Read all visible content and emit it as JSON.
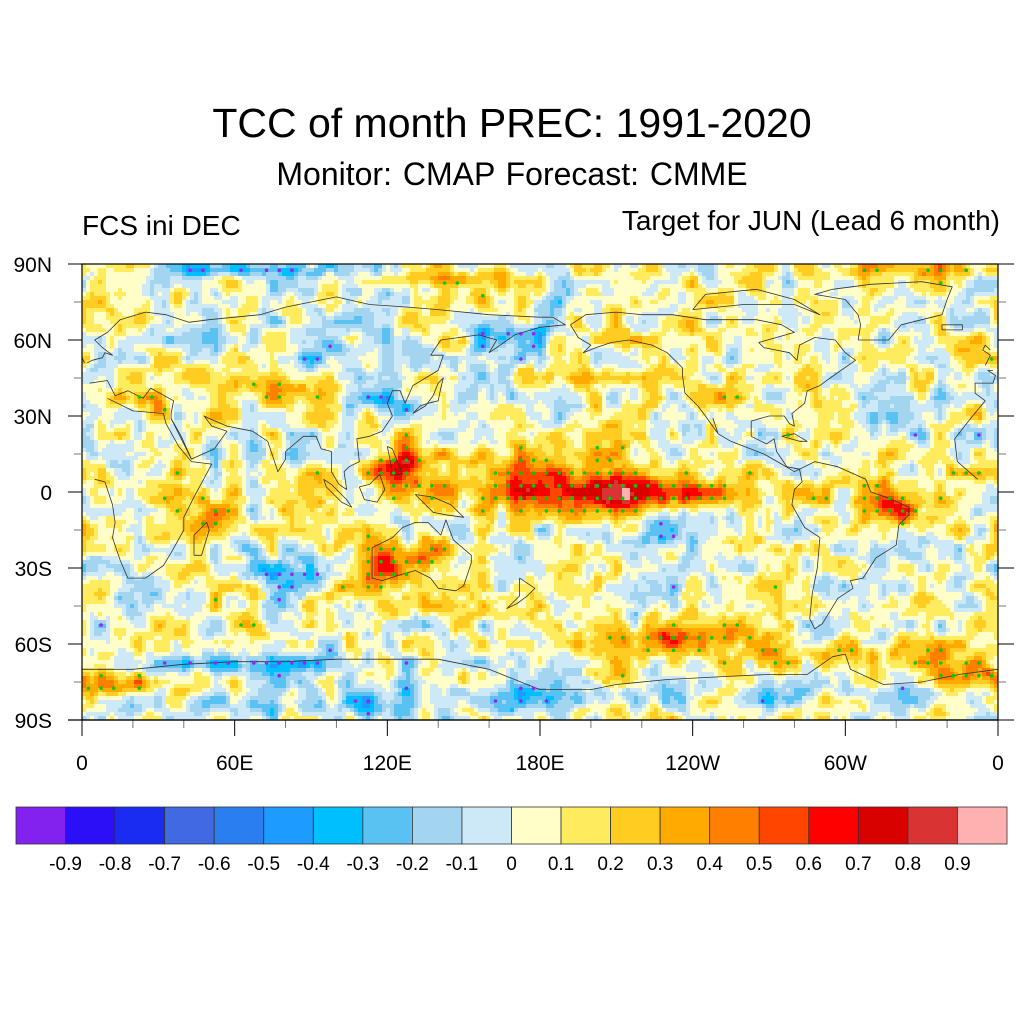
{
  "header": {
    "title": "TCC of month PREC: 1991-2020",
    "subtitle": "Monitor: CMAP   Forecast: CMME",
    "left_label": "FCS ini DEC",
    "right_label": "Target for JUN (Lead 6 month)"
  },
  "chart_data": {
    "type": "heatmap",
    "title": "TCC of month PREC: 1991-2020",
    "subtitle": "Monitor: CMAP   Forecast: CMME",
    "annotations": [
      "FCS ini DEC",
      "Target for JUN (Lead 6 month)"
    ],
    "projection": "cylindrical equidistant global map with coastlines",
    "xlabel": "",
    "ylabel": "",
    "x_range_deg_east": [
      0,
      360
    ],
    "y_range_deg_north": [
      -90,
      90
    ],
    "x_ticks": [
      {
        "lon": 0,
        "label": "0"
      },
      {
        "lon": 60,
        "label": "60E"
      },
      {
        "lon": 120,
        "label": "120E"
      },
      {
        "lon": 180,
        "label": "180E"
      },
      {
        "lon": 240,
        "label": "120W"
      },
      {
        "lon": 300,
        "label": "60W"
      },
      {
        "lon": 360,
        "label": "0"
      }
    ],
    "x_minor_tick_step_deg": 20,
    "y_ticks": [
      {
        "lat": 90,
        "label": "90N"
      },
      {
        "lat": 60,
        "label": "60N"
      },
      {
        "lat": 30,
        "label": "30N"
      },
      {
        "lat": 0,
        "label": "0"
      },
      {
        "lat": -30,
        "label": "30S"
      },
      {
        "lat": -60,
        "label": "60S"
      },
      {
        "lat": -90,
        "label": "90S"
      }
    ],
    "y_minor_tick_step_deg": 15,
    "colorbar": {
      "orientation": "horizontal",
      "position": "bottom",
      "levels": [
        -0.9,
        -0.8,
        -0.7,
        -0.6,
        -0.5,
        -0.4,
        -0.3,
        -0.2,
        -0.1,
        0,
        0.1,
        0.2,
        0.3,
        0.4,
        0.5,
        0.6,
        0.7,
        0.8,
        0.9
      ],
      "labels": [
        "-0.9",
        "-0.8",
        "-0.7",
        "-0.6",
        "-0.5",
        "-0.4",
        "-0.3",
        "-0.2",
        "-0.1",
        "0",
        "0.1",
        "0.2",
        "0.3",
        "0.4",
        "0.5",
        "0.6",
        "0.7",
        "0.8",
        "0.9"
      ],
      "colors": [
        "#8322ee",
        "#2d0ff7",
        "#1a2cf2",
        "#4169e1",
        "#2b7ef0",
        "#1e9bff",
        "#00bfff",
        "#5ac2f2",
        "#a3d5f0",
        "#cde8f7",
        "#fffec8",
        "#ffec5e",
        "#ffcc22",
        "#ffaa00",
        "#ff7f00",
        "#ff4500",
        "#ff0000",
        "#d90000",
        "#d93333",
        "#ffb0b0"
      ]
    },
    "significance_markers": [
      {
        "color": "#00cc00",
        "meaning": "significant positive correlation"
      },
      {
        "color": "#a020f0",
        "meaning": "significant negative correlation"
      }
    ],
    "notable_features": [
      {
        "region": "Equatorial central-eastern Pacific (160E-120W, 10S-10N)",
        "value_range": [
          0.4,
          0.7
        ],
        "significant": true
      },
      {
        "region": "Maritime Continent / Philippines (120E-130E, 0-15N)",
        "value_range": [
          0.4,
          0.7
        ],
        "significant": true
      },
      {
        "region": "Southern Ocean south of Pacific (150W-90W, 55S-65S)",
        "value_range": [
          0.3,
          0.6
        ],
        "significant": true
      },
      {
        "region": "Northern South America (70W-40W, 10S-5N)",
        "value_range": [
          0.3,
          0.6
        ],
        "significant": true
      },
      {
        "region": "Central Asia (50E-90E, 35N-45N)",
        "value_range": [
          0.3,
          0.5
        ],
        "significant": true
      },
      {
        "region": "Arctic near 60E-160E (85N-90N)",
        "value_range": [
          -0.4,
          -0.3
        ],
        "significant": true
      },
      {
        "region": "Antarctic coastal ocean (0-130E, 65S-75S)",
        "value_range": [
          -0.4,
          -0.2
        ],
        "significant": true
      },
      {
        "region": "East China / Korea (115E-135E, 30N-40N)",
        "value_range": [
          -0.4,
          -0.3
        ],
        "significant": true
      },
      {
        "region": "Siberia / Mongolia (90E-110E, 45N-65N)",
        "value_range": [
          -0.4,
          -0.2
        ],
        "significant": true
      },
      {
        "region": "North Atlantic mid-latitudes (60W-20W, 20N-40N)",
        "value_range": [
          -0.3,
          -0.1
        ],
        "significant": false
      }
    ],
    "grid": false
  }
}
